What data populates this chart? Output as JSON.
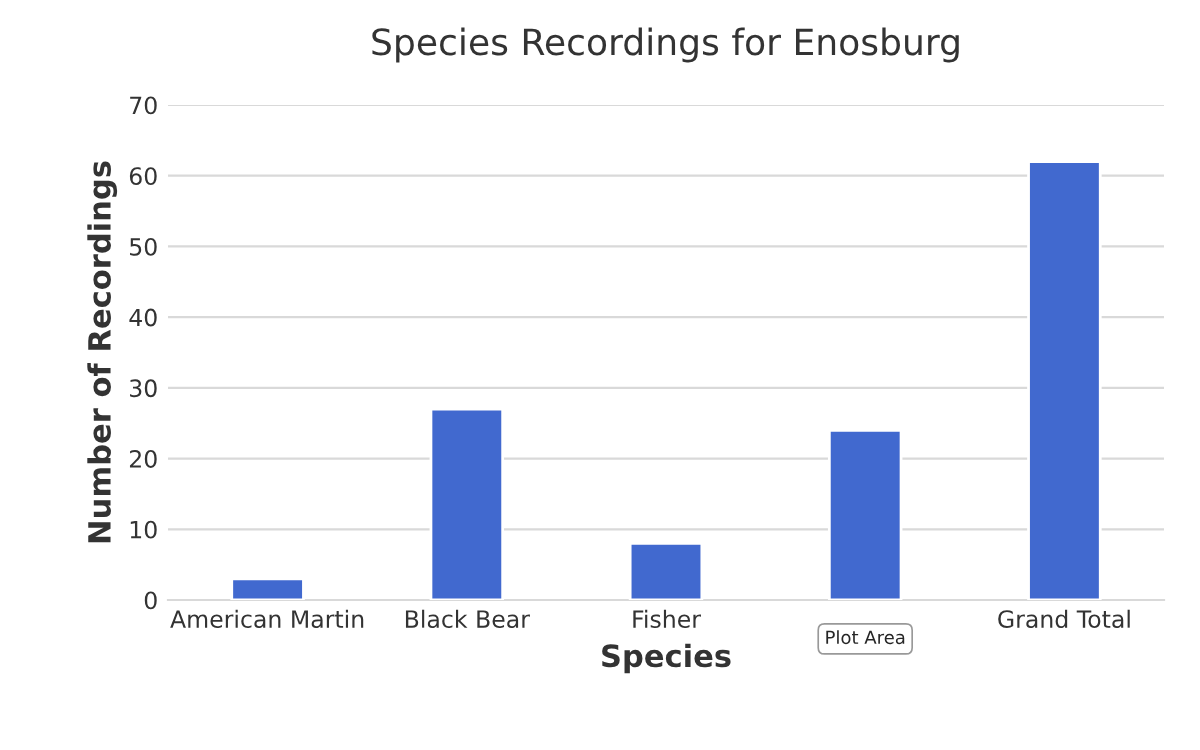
{
  "chart_data": {
    "type": "bar",
    "title": "Species Recordings for Enosburg",
    "xlabel": "Species",
    "ylabel": "Number of Recordings",
    "categories": [
      "American Martin",
      "Black Bear",
      "Fisher",
      null,
      "Grand Total"
    ],
    "values": [
      3,
      27,
      8,
      24,
      62
    ],
    "color": "#4169cf",
    "ylim": [
      0,
      70
    ],
    "yticks": [
      0,
      10,
      20,
      30,
      40,
      50,
      60,
      70
    ],
    "grid": "y",
    "annotations": [
      "Plot Area"
    ]
  }
}
